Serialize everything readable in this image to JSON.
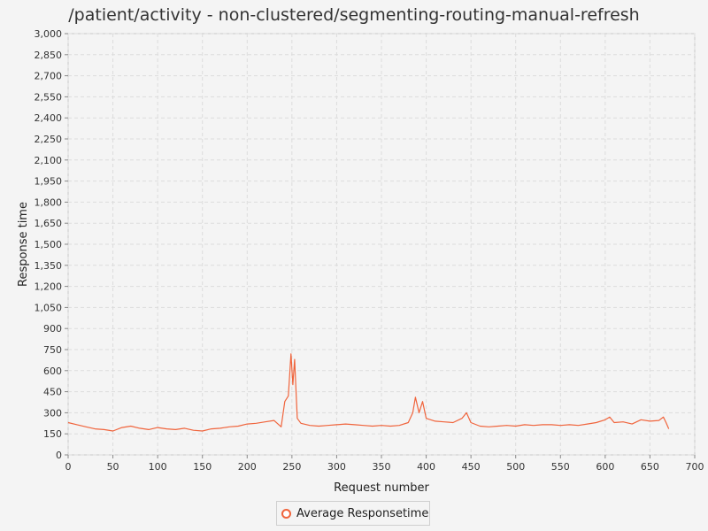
{
  "chart_data": {
    "type": "line",
    "title": "/patient/activity - non-clustered/segmenting-routing-manual-refresh",
    "xlabel": "Request number",
    "ylabel": "Response time",
    "xlim": [
      0,
      700
    ],
    "ylim": [
      0,
      3000
    ],
    "x_ticks": [
      0,
      50,
      100,
      150,
      200,
      250,
      300,
      350,
      400,
      450,
      500,
      550,
      600,
      650,
      700
    ],
    "x_tick_labels": [
      "0",
      "50",
      "100",
      "150",
      "200",
      "250",
      "300",
      "350",
      "400",
      "450",
      "500",
      "550",
      "600",
      "650",
      "700"
    ],
    "y_ticks": [
      0,
      150,
      300,
      450,
      600,
      750,
      900,
      1050,
      1200,
      1350,
      1500,
      1650,
      1800,
      1950,
      2100,
      2250,
      2400,
      2550,
      2700,
      2850,
      3000
    ],
    "y_tick_labels": [
      "0",
      "150",
      "300",
      "450",
      "600",
      "750",
      "900",
      "1,050",
      "1,200",
      "1,350",
      "1,500",
      "1,650",
      "1,800",
      "1,950",
      "2,100",
      "2,250",
      "2,400",
      "2,550",
      "2,700",
      "2,850",
      "3,000"
    ],
    "grid": true,
    "legend_position": "bottom-center",
    "series": [
      {
        "name": "Average Responsetime",
        "color": "#f0643c",
        "points": [
          [
            0,
            230
          ],
          [
            10,
            215
          ],
          [
            20,
            200
          ],
          [
            30,
            185
          ],
          [
            40,
            180
          ],
          [
            50,
            170
          ],
          [
            60,
            195
          ],
          [
            70,
            205
          ],
          [
            80,
            190
          ],
          [
            90,
            180
          ],
          [
            100,
            195
          ],
          [
            110,
            185
          ],
          [
            120,
            180
          ],
          [
            130,
            190
          ],
          [
            140,
            175
          ],
          [
            150,
            170
          ],
          [
            160,
            185
          ],
          [
            170,
            190
          ],
          [
            180,
            200
          ],
          [
            190,
            205
          ],
          [
            200,
            220
          ],
          [
            210,
            225
          ],
          [
            220,
            235
          ],
          [
            230,
            245
          ],
          [
            238,
            200
          ],
          [
            242,
            380
          ],
          [
            246,
            420
          ],
          [
            249,
            720
          ],
          [
            251,
            500
          ],
          [
            253,
            680
          ],
          [
            256,
            260
          ],
          [
            260,
            225
          ],
          [
            270,
            210
          ],
          [
            280,
            205
          ],
          [
            290,
            210
          ],
          [
            300,
            215
          ],
          [
            310,
            220
          ],
          [
            320,
            215
          ],
          [
            330,
            210
          ],
          [
            340,
            205
          ],
          [
            350,
            210
          ],
          [
            360,
            205
          ],
          [
            370,
            210
          ],
          [
            380,
            230
          ],
          [
            385,
            300
          ],
          [
            388,
            410
          ],
          [
            392,
            300
          ],
          [
            396,
            380
          ],
          [
            400,
            260
          ],
          [
            410,
            240
          ],
          [
            420,
            235
          ],
          [
            430,
            230
          ],
          [
            440,
            260
          ],
          [
            445,
            300
          ],
          [
            450,
            230
          ],
          [
            460,
            205
          ],
          [
            470,
            200
          ],
          [
            480,
            205
          ],
          [
            490,
            210
          ],
          [
            500,
            205
          ],
          [
            510,
            215
          ],
          [
            520,
            210
          ],
          [
            530,
            215
          ],
          [
            540,
            215
          ],
          [
            550,
            210
          ],
          [
            560,
            215
          ],
          [
            570,
            210
          ],
          [
            580,
            220
          ],
          [
            590,
            230
          ],
          [
            600,
            250
          ],
          [
            605,
            270
          ],
          [
            610,
            230
          ],
          [
            620,
            235
          ],
          [
            630,
            220
          ],
          [
            640,
            250
          ],
          [
            650,
            240
          ],
          [
            660,
            245
          ],
          [
            665,
            270
          ],
          [
            668,
            230
          ],
          [
            671,
            185
          ]
        ]
      }
    ]
  }
}
